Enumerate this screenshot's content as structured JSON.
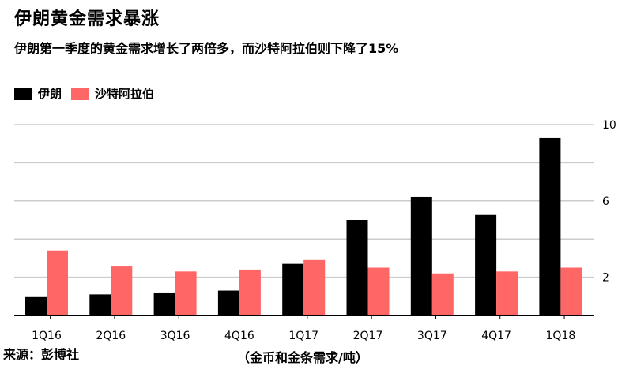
{
  "title": "伊朗黄金需求暴涨",
  "subtitle": "伊朗第一季度的黄金需求增长了两倍多，而沙特阿拉伯则下降了15%",
  "source": "来源：彭博社",
  "unit_label": "（金币和金条需求/吨）",
  "colors": {
    "iran": "#000000",
    "saudi": "#ff6666",
    "grid": "#cccccc",
    "axis": "#000000"
  },
  "chart_data": {
    "type": "bar",
    "categories": [
      "1Q16",
      "2Q16",
      "3Q16",
      "4Q16",
      "1Q17",
      "2Q17",
      "3Q17",
      "4Q17",
      "1Q18"
    ],
    "series": [
      {
        "name": "伊朗",
        "values": [
          1.0,
          1.1,
          1.2,
          1.3,
          2.7,
          5.0,
          6.2,
          5.3,
          9.3
        ]
      },
      {
        "name": "沙特阿拉伯",
        "values": [
          3.4,
          2.6,
          2.3,
          2.4,
          2.9,
          2.5,
          2.2,
          2.3,
          2.5
        ]
      }
    ],
    "yticks": [
      2,
      6,
      10
    ],
    "ylim": [
      0,
      10
    ],
    "grid": true,
    "legend_position": "top-left"
  }
}
